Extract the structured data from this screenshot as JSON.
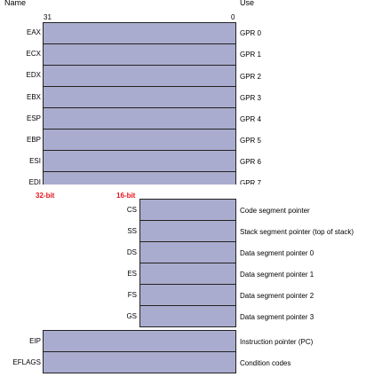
{
  "headers": {
    "name": "Name",
    "use": "Use"
  },
  "bit_labels": {
    "high": "31",
    "low": "0"
  },
  "markers": {
    "bit32": "32-bit",
    "bit16": "16-bit"
  },
  "colors": {
    "register_fill": "#aaaccf",
    "register_border": "#222222",
    "marker_text": "#e8141b"
  },
  "gpr": [
    {
      "name": "EAX",
      "use": "GPR 0"
    },
    {
      "name": "ECX",
      "use": "GPR 1"
    },
    {
      "name": "EDX",
      "use": "GPR 2"
    },
    {
      "name": "EBX",
      "use": "GPR 3"
    },
    {
      "name": "ESP",
      "use": "GPR 4"
    },
    {
      "name": "EBP",
      "use": "GPR 5"
    },
    {
      "name": "ESI",
      "use": "GPR 6"
    },
    {
      "name": "EDI",
      "use": "GPR 7"
    }
  ],
  "segment": [
    {
      "name": "CS",
      "use": "Code segment pointer"
    },
    {
      "name": "SS",
      "use": "Stack segment pointer (top of stack)"
    },
    {
      "name": "DS",
      "use": "Data segment pointer 0"
    },
    {
      "name": "ES",
      "use": "Data segment pointer 1"
    },
    {
      "name": "FS",
      "use": "Data segment pointer 2"
    },
    {
      "name": "GS",
      "use": "Data segment pointer 3"
    }
  ],
  "special": [
    {
      "name": "EIP",
      "use": "Instruction pointer (PC)"
    },
    {
      "name": "EFLAGS",
      "use": "Condition codes"
    }
  ]
}
